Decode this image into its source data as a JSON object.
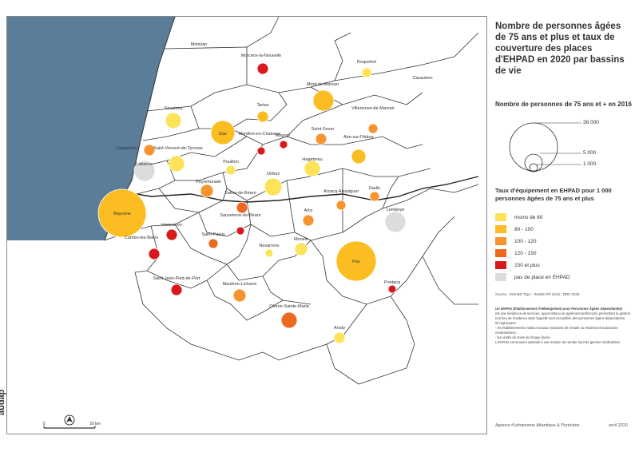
{
  "title": "Nombre de personnes âgées de 75 ans et plus et taux de couverture des places d'EHPAD en 2020 par bassins de vie",
  "brand": "audap",
  "scale_bar": {
    "start": "0",
    "end": "20 km"
  },
  "legend": {
    "size_title": "Nombre de personnes de 75 ans et + en 2016",
    "size_values": [
      "38 000",
      "5 000",
      "1 000"
    ],
    "rate_title": "Taux d'équipement en EHPAD pour 1 000 personnes âgées de 75 ans et plus",
    "classes": [
      {
        "label": "moins de 80",
        "color": "#fde35a"
      },
      {
        "label": "80 - 100",
        "color": "#fbbd22"
      },
      {
        "label": "100 - 120",
        "color": "#f79430"
      },
      {
        "label": "120 - 150",
        "color": "#ec6a1f"
      },
      {
        "label": "150 et plus",
        "color": "#d7191c"
      },
      {
        "label": "pas de place en EHPAD",
        "color": "#dcdcdc"
      }
    ]
  },
  "source": "Source : IGN-BD Topo ; INSEE-RP 2016 ; DRS 2020",
  "note": {
    "title": "Un EHPAD (Établissement d'Hébergement pour Personnes Âgées Dépendantes)",
    "lines": [
      "est une résidence de services, ayant obtenu un agrément préfectoral, permettant la gestion (sur lieu de résidence dans laquelle sont accueillies des personnes âgées dépendantes.",
      "Ils regroupent :",
      "- les établissements médico-sociaux (maisons de retraite ou résidences-autonomie médicalisées) ;",
      "- les unités de soins de longue durée.",
      "L'EHPAD est souvent assimilé à une maison de retraite haut de gamme médicalisée."
    ]
  },
  "footer": {
    "agency": "Agence d'urbanisme Atlantique & Pyrénées",
    "date": "avril 2020"
  },
  "basins": [
    {
      "name": "Mimizan",
      "class": null
    },
    {
      "name": "Morcenx-la-Nouvelle",
      "class": 4
    },
    {
      "name": "Roquefort",
      "class": 0
    },
    {
      "name": "Casaubon",
      "class": null
    },
    {
      "name": "Mont-de-Marsan",
      "class": 1
    },
    {
      "name": "Soustons",
      "class": 0
    },
    {
      "name": "Tartas",
      "class": 1
    },
    {
      "name": "Villeneuve-de-Marsan",
      "class": 2
    },
    {
      "name": "Dax",
      "class": 1
    },
    {
      "name": "Montfort-en-Chalosse",
      "class": 4
    },
    {
      "name": "Mugron",
      "class": 4
    },
    {
      "name": "Saint-Sever",
      "class": 2
    },
    {
      "name": "Capbreton",
      "class": 2
    },
    {
      "name": "Saint-Vincent-de-Tyrosse",
      "class": 0
    },
    {
      "name": "Aire-sur-l'Adour",
      "class": 1
    },
    {
      "name": "Labenne",
      "class": 5
    },
    {
      "name": "Pouillon",
      "class": 0
    },
    {
      "name": "Hagetmau",
      "class": 0
    },
    {
      "name": "Orthez",
      "class": 0
    },
    {
      "name": "Peyrehorade",
      "class": 2
    },
    {
      "name": "Garlin",
      "class": 2
    },
    {
      "name": "Salies-de-Béarn",
      "class": 3
    },
    {
      "name": "Arzacq-Arraziguet",
      "class": 2
    },
    {
      "name": "Bayonne",
      "class": 1
    },
    {
      "name": "Hasparren",
      "class": 4
    },
    {
      "name": "Sauveterre-de-Béarn",
      "class": 4
    },
    {
      "name": "Artix",
      "class": 2
    },
    {
      "name": "Lembeye",
      "class": 5
    },
    {
      "name": "Cambo-les-Bains",
      "class": 4
    },
    {
      "name": "Saint-Palais",
      "class": 3
    },
    {
      "name": "Navarrenx",
      "class": 0
    },
    {
      "name": "Monein",
      "class": 0
    },
    {
      "name": "Pau",
      "class": 1
    },
    {
      "name": "Saint-Jean-Pied-de-Port",
      "class": 4
    },
    {
      "name": "Mauléon-Licharre",
      "class": 2
    },
    {
      "name": "Pontacq",
      "class": 4
    },
    {
      "name": "Oloron-Sainte-Marie",
      "class": 3
    },
    {
      "name": "Arudy",
      "class": 0
    }
  ]
}
